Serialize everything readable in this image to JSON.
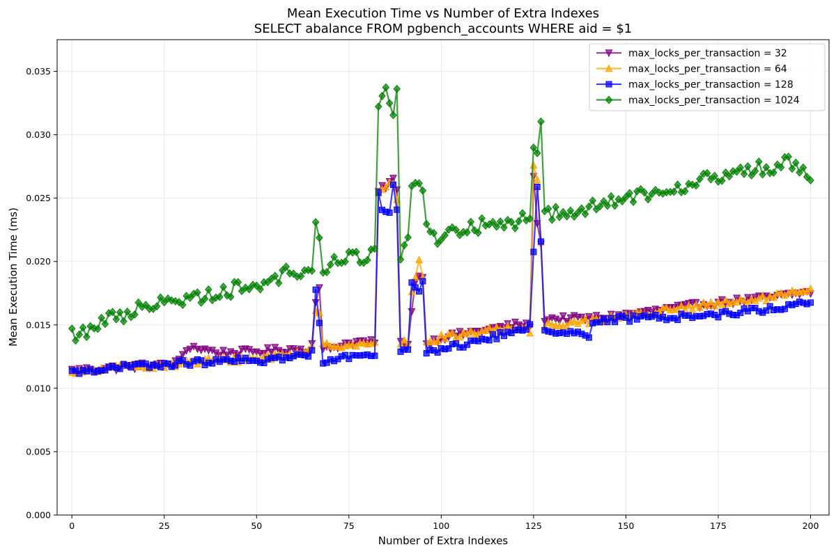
{
  "chart_data": {
    "type": "line",
    "title": "Mean Execution Time vs Number of Extra Indexes",
    "subtitle": "SELECT abalance FROM pgbench_accounts WHERE aid = $1",
    "xlabel": "Number of Extra Indexes",
    "ylabel": "Mean Execution Time (ms)",
    "xlim": [
      -4,
      205
    ],
    "ylim": [
      0,
      0.0375
    ],
    "xticks": [
      0,
      25,
      50,
      75,
      100,
      125,
      150,
      175,
      200
    ],
    "xtick_labels": [
      "0",
      "25",
      "50",
      "75",
      "100",
      "125",
      "150",
      "175",
      "200"
    ],
    "yticks": [
      0,
      0.005,
      0.01,
      0.015,
      0.02,
      0.025,
      0.03,
      0.035
    ],
    "ytick_labels": [
      "0.000",
      "0.005",
      "0.010",
      "0.015",
      "0.020",
      "0.025",
      "0.030",
      "0.035"
    ],
    "grid": true,
    "legend_position": "top-right",
    "x_range": {
      "start": 0,
      "end": 200,
      "step": 1
    },
    "series": [
      {
        "name": "max_locks_per_transaction = 32",
        "color": "#800080",
        "marker": "triangle-down",
        "anchors": [
          [
            0,
            0.0114
          ],
          [
            5,
            0.0115
          ],
          [
            10,
            0.0116
          ],
          [
            15,
            0.0117
          ],
          [
            20,
            0.0118
          ],
          [
            25,
            0.0118
          ],
          [
            29,
            0.0121
          ],
          [
            30,
            0.0127
          ],
          [
            32,
            0.0133
          ],
          [
            40,
            0.0128
          ],
          [
            50,
            0.0129
          ],
          [
            60,
            0.0131
          ],
          [
            64,
            0.013
          ],
          [
            65,
            0.0135
          ],
          [
            66,
            0.017
          ],
          [
            67,
            0.0178
          ],
          [
            68,
            0.013
          ],
          [
            75,
            0.0136
          ],
          [
            80,
            0.0137
          ],
          [
            82,
            0.0135
          ],
          [
            83,
            0.0255
          ],
          [
            87,
            0.0265
          ],
          [
            88,
            0.0255
          ],
          [
            89,
            0.0136
          ],
          [
            91,
            0.0136
          ],
          [
            92,
            0.016
          ],
          [
            93,
            0.0185
          ],
          [
            95,
            0.019
          ],
          [
            96,
            0.0135
          ],
          [
            100,
            0.014
          ],
          [
            110,
            0.0145
          ],
          [
            120,
            0.015
          ],
          [
            124,
            0.015
          ],
          [
            125,
            0.0265
          ],
          [
            126,
            0.0232
          ],
          [
            127,
            0.0212
          ],
          [
            128,
            0.0155
          ],
          [
            140,
            0.0155
          ],
          [
            150,
            0.0158
          ],
          [
            160,
            0.0162
          ],
          [
            170,
            0.0166
          ],
          [
            180,
            0.0169
          ],
          [
            190,
            0.0172
          ],
          [
            200,
            0.0176
          ]
        ],
        "noise": 0.00025
      },
      {
        "name": "max_locks_per_transaction = 64",
        "color": "#ffa500",
        "marker": "triangle-up",
        "anchors": [
          [
            0,
            0.0111
          ],
          [
            5,
            0.0114
          ],
          [
            10,
            0.0115
          ],
          [
            15,
            0.0117
          ],
          [
            20,
            0.0118
          ],
          [
            25,
            0.0118
          ],
          [
            30,
            0.012
          ],
          [
            40,
            0.0122
          ],
          [
            50,
            0.0124
          ],
          [
            60,
            0.0127
          ],
          [
            64,
            0.013
          ],
          [
            65,
            0.0135
          ],
          [
            66,
            0.016
          ],
          [
            67,
            0.0158
          ],
          [
            68,
            0.0133
          ],
          [
            75,
            0.0135
          ],
          [
            80,
            0.0136
          ],
          [
            82,
            0.0134
          ],
          [
            83,
            0.0255
          ],
          [
            87,
            0.0262
          ],
          [
            88,
            0.025
          ],
          [
            89,
            0.0135
          ],
          [
            91,
            0.0137
          ],
          [
            92,
            0.0175
          ],
          [
            94,
            0.02
          ],
          [
            95,
            0.0185
          ],
          [
            96,
            0.0137
          ],
          [
            100,
            0.014
          ],
          [
            110,
            0.0145
          ],
          [
            120,
            0.0148
          ],
          [
            123,
            0.0148
          ],
          [
            124,
            0.0143
          ],
          [
            125,
            0.0275
          ],
          [
            126,
            0.0265
          ],
          [
            127,
            0.0215
          ],
          [
            128,
            0.015
          ],
          [
            140,
            0.0153
          ],
          [
            150,
            0.0157
          ],
          [
            160,
            0.0161
          ],
          [
            170,
            0.0165
          ],
          [
            180,
            0.0168
          ],
          [
            190,
            0.0172
          ],
          [
            200,
            0.0177
          ]
        ],
        "noise": 0.00025
      },
      {
        "name": "max_locks_per_transaction = 128",
        "color": "#0000ff",
        "marker": "square",
        "anchors": [
          [
            0,
            0.0112
          ],
          [
            5,
            0.0115
          ],
          [
            10,
            0.0115
          ],
          [
            15,
            0.0117
          ],
          [
            20,
            0.0118
          ],
          [
            25,
            0.0118
          ],
          [
            30,
            0.012
          ],
          [
            40,
            0.0121
          ],
          [
            50,
            0.0122
          ],
          [
            60,
            0.0124
          ],
          [
            65,
            0.0128
          ],
          [
            66,
            0.0178
          ],
          [
            67,
            0.015
          ],
          [
            68,
            0.0122
          ],
          [
            75,
            0.0125
          ],
          [
            80,
            0.0128
          ],
          [
            82,
            0.0127
          ],
          [
            83,
            0.0252
          ],
          [
            84,
            0.0243
          ],
          [
            86,
            0.024
          ],
          [
            87,
            0.0263
          ],
          [
            88,
            0.024
          ],
          [
            89,
            0.013
          ],
          [
            91,
            0.0129
          ],
          [
            92,
            0.0182
          ],
          [
            94,
            0.0175
          ],
          [
            95,
            0.0182
          ],
          [
            96,
            0.0129
          ],
          [
            100,
            0.0131
          ],
          [
            110,
            0.0137
          ],
          [
            120,
            0.0145
          ],
          [
            124,
            0.0148
          ],
          [
            125,
            0.0208
          ],
          [
            126,
            0.0258
          ],
          [
            127,
            0.0217
          ],
          [
            128,
            0.0146
          ],
          [
            135,
            0.0145
          ],
          [
            140,
            0.0141
          ],
          [
            141,
            0.0152
          ],
          [
            150,
            0.0155
          ],
          [
            160,
            0.0156
          ],
          [
            170,
            0.0157
          ],
          [
            180,
            0.016
          ],
          [
            190,
            0.0163
          ],
          [
            200,
            0.0168
          ]
        ],
        "noise": 0.00025
      },
      {
        "name": "max_locks_per_transaction = 1024",
        "color": "#008000",
        "marker": "diamond",
        "anchors": [
          [
            0,
            0.0142
          ],
          [
            5,
            0.0147
          ],
          [
            10,
            0.0155
          ],
          [
            15,
            0.0158
          ],
          [
            17,
            0.0162
          ],
          [
            18,
            0.017
          ],
          [
            20,
            0.0166
          ],
          [
            25,
            0.0167
          ],
          [
            30,
            0.017
          ],
          [
            40,
            0.0176
          ],
          [
            50,
            0.0182
          ],
          [
            55,
            0.0188
          ],
          [
            60,
            0.0192
          ],
          [
            65,
            0.0192
          ],
          [
            66,
            0.0235
          ],
          [
            67,
            0.0215
          ],
          [
            68,
            0.0195
          ],
          [
            75,
            0.0202
          ],
          [
            80,
            0.0205
          ],
          [
            82,
            0.021
          ],
          [
            83,
            0.032
          ],
          [
            84,
            0.033
          ],
          [
            85,
            0.0337
          ],
          [
            87,
            0.0313
          ],
          [
            88,
            0.0341
          ],
          [
            89,
            0.0207
          ],
          [
            91,
            0.0218
          ],
          [
            92,
            0.0255
          ],
          [
            94,
            0.0258
          ],
          [
            95,
            0.025
          ],
          [
            96,
            0.0235
          ],
          [
            97,
            0.0218
          ],
          [
            100,
            0.022
          ],
          [
            110,
            0.0228
          ],
          [
            120,
            0.0232
          ],
          [
            122,
            0.024
          ],
          [
            124,
            0.0235
          ],
          [
            125,
            0.0294
          ],
          [
            126,
            0.028
          ],
          [
            127,
            0.0305
          ],
          [
            128,
            0.0238
          ],
          [
            140,
            0.0243
          ],
          [
            150,
            0.025
          ],
          [
            160,
            0.0258
          ],
          [
            170,
            0.0263
          ],
          [
            180,
            0.027
          ],
          [
            190,
            0.0275
          ],
          [
            194,
            0.028
          ],
          [
            200,
            0.027
          ]
        ],
        "noise": 0.0006
      }
    ]
  }
}
